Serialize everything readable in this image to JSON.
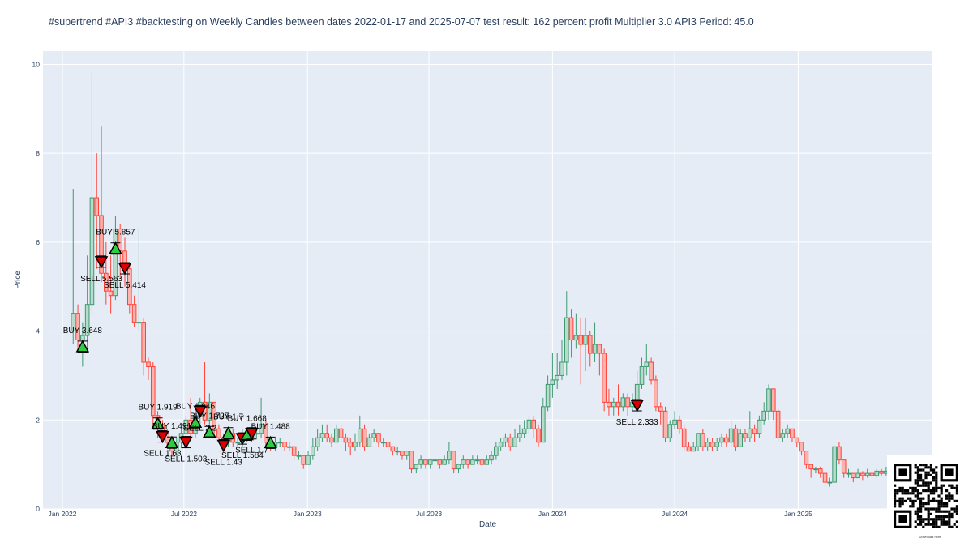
{
  "title": "#supertrend #API3 #backtesting on Weekly Candles between dates 2022-01-17 and 2025-07-07 test result: 162 percent profit Multiplier 3.0  API3 Period: 45.0",
  "qr_caption": "Download here",
  "colors": {
    "plot_bg": "#e5ecf6",
    "grid": "#ffffff",
    "up": "#3d9970",
    "down": "#ff4136",
    "buy_marker": "#2ecc40",
    "sell_marker": "#dd0000"
  },
  "chart_data": {
    "type": "candlestick",
    "xlabel": "Date",
    "ylabel": "Price",
    "ylim": [
      0,
      10.3
    ],
    "xlim": [
      "2021-12-03",
      "2025-07-20"
    ],
    "grid": true,
    "x_ticks": [
      {
        "date": "2022-01-01",
        "label": "Jan 2022"
      },
      {
        "date": "2022-07-01",
        "label": "Jul 2022"
      },
      {
        "date": "2023-01-01",
        "label": "Jan 2023"
      },
      {
        "date": "2023-07-01",
        "label": "Jul 2023"
      },
      {
        "date": "2024-01-01",
        "label": "Jan 2024"
      },
      {
        "date": "2024-07-01",
        "label": "Jul 2024"
      },
      {
        "date": "2025-01-01",
        "label": "Jan 2025"
      }
    ],
    "y_ticks": [
      0,
      2,
      4,
      6,
      8,
      10
    ],
    "candles": [
      [
        "2022-01-17",
        4.0,
        4.4,
        7.2,
        3.7
      ],
      [
        "2022-01-24",
        4.4,
        3.8,
        4.6,
        3.5
      ],
      [
        "2022-01-31",
        3.8,
        3.9,
        4.2,
        3.2
      ],
      [
        "2022-02-07",
        3.9,
        4.6,
        5.7,
        3.6
      ],
      [
        "2022-02-14",
        4.6,
        7.0,
        9.8,
        4.4
      ],
      [
        "2022-02-21",
        7.0,
        6.6,
        8.0,
        5.4
      ],
      [
        "2022-02-28",
        6.6,
        5.3,
        8.6,
        5.1
      ],
      [
        "2022-03-07",
        5.3,
        4.9,
        6.0,
        4.6
      ],
      [
        "2022-03-14",
        4.9,
        4.8,
        5.7,
        4.4
      ],
      [
        "2022-03-21",
        4.8,
        6.3,
        6.6,
        4.7
      ],
      [
        "2022-03-28",
        6.3,
        5.8,
        6.4,
        5.2
      ],
      [
        "2022-04-04",
        5.8,
        5.4,
        6.1,
        5.0
      ],
      [
        "2022-04-11",
        5.4,
        4.6,
        5.5,
        4.4
      ],
      [
        "2022-04-18",
        4.6,
        4.2,
        4.8,
        4.1
      ],
      [
        "2022-04-25",
        4.2,
        4.2,
        6.3,
        4.0
      ],
      [
        "2022-05-02",
        4.2,
        3.3,
        4.3,
        3.0
      ],
      [
        "2022-05-09",
        3.3,
        3.2,
        3.4,
        2.9
      ],
      [
        "2022-05-16",
        3.2,
        2.1,
        3.3,
        1.9
      ],
      [
        "2022-05-23",
        2.1,
        1.9,
        2.2,
        1.6
      ],
      [
        "2022-05-30",
        1.9,
        1.7,
        2.0,
        1.6
      ],
      [
        "2022-06-06",
        1.7,
        1.5,
        1.8,
        1.4
      ],
      [
        "2022-06-13",
        1.5,
        1.3,
        1.6,
        1.2
      ],
      [
        "2022-06-20",
        1.3,
        1.5,
        1.6,
        1.2
      ],
      [
        "2022-06-27",
        1.5,
        1.7,
        1.8,
        1.4
      ],
      [
        "2022-07-04",
        1.7,
        2.0,
        2.1,
        1.6
      ],
      [
        "2022-07-11",
        2.0,
        1.7,
        2.5,
        1.6
      ],
      [
        "2022-07-18",
        1.7,
        2.1,
        2.3,
        1.6
      ],
      [
        "2022-07-25",
        2.1,
        2.4,
        2.5,
        1.9
      ],
      [
        "2022-08-01",
        2.4,
        2.0,
        3.3,
        1.9
      ],
      [
        "2022-08-08",
        2.0,
        2.4,
        2.6,
        1.9
      ],
      [
        "2022-08-15",
        2.4,
        1.8,
        2.4,
        1.7
      ],
      [
        "2022-08-22",
        1.8,
        1.6,
        1.9,
        1.5
      ],
      [
        "2022-08-29",
        1.6,
        1.5,
        1.7,
        1.4
      ],
      [
        "2022-09-05",
        1.5,
        1.7,
        1.8,
        1.4
      ],
      [
        "2022-09-12",
        1.7,
        1.5,
        1.8,
        1.4
      ],
      [
        "2022-09-19",
        1.5,
        1.5,
        1.6,
        1.4
      ],
      [
        "2022-09-26",
        1.5,
        1.7,
        1.8,
        1.4
      ],
      [
        "2022-10-03",
        1.7,
        1.6,
        1.8,
        1.5
      ],
      [
        "2022-10-10",
        1.6,
        1.7,
        1.7,
        1.5
      ],
      [
        "2022-10-17",
        1.7,
        1.7,
        1.8,
        1.6
      ],
      [
        "2022-10-24",
        1.7,
        1.9,
        2.5,
        1.6
      ],
      [
        "2022-10-31",
        1.9,
        1.5,
        2.0,
        1.4
      ],
      [
        "2022-11-07",
        1.5,
        1.4,
        1.6,
        1.3
      ],
      [
        "2022-11-14",
        1.4,
        1.5,
        1.6,
        1.3
      ],
      [
        "2022-11-21",
        1.5,
        1.5,
        1.6,
        1.4
      ],
      [
        "2022-11-28",
        1.5,
        1.4,
        1.5,
        1.3
      ],
      [
        "2022-12-05",
        1.4,
        1.4,
        1.5,
        1.3
      ],
      [
        "2022-12-12",
        1.4,
        1.2,
        1.4,
        1.1
      ],
      [
        "2022-12-19",
        1.2,
        1.2,
        1.3,
        1.1
      ],
      [
        "2022-12-26",
        1.2,
        1.0,
        1.2,
        0.9
      ],
      [
        "2023-01-02",
        1.0,
        1.2,
        1.3,
        1.0
      ],
      [
        "2023-01-09",
        1.2,
        1.4,
        1.6,
        1.1
      ],
      [
        "2023-01-16",
        1.4,
        1.6,
        1.8,
        1.3
      ],
      [
        "2023-01-23",
        1.6,
        1.7,
        1.9,
        1.5
      ],
      [
        "2023-01-30",
        1.7,
        1.6,
        1.9,
        1.5
      ],
      [
        "2023-02-06",
        1.6,
        1.5,
        1.7,
        1.4
      ],
      [
        "2023-02-13",
        1.5,
        1.8,
        1.9,
        1.5
      ],
      [
        "2023-02-20",
        1.8,
        1.6,
        1.9,
        1.5
      ],
      [
        "2023-02-27",
        1.6,
        1.5,
        1.7,
        1.3
      ],
      [
        "2023-03-06",
        1.5,
        1.4,
        1.6,
        1.2
      ],
      [
        "2023-03-13",
        1.4,
        1.5,
        1.7,
        1.3
      ],
      [
        "2023-03-20",
        1.5,
        1.8,
        2.1,
        1.4
      ],
      [
        "2023-03-27",
        1.8,
        1.4,
        1.9,
        1.3
      ],
      [
        "2023-04-03",
        1.4,
        1.6,
        1.7,
        1.4
      ],
      [
        "2023-04-10",
        1.6,
        1.7,
        1.8,
        1.5
      ],
      [
        "2023-04-17",
        1.7,
        1.5,
        1.7,
        1.4
      ],
      [
        "2023-04-24",
        1.5,
        1.5,
        1.6,
        1.4
      ],
      [
        "2023-05-01",
        1.5,
        1.4,
        1.5,
        1.3
      ],
      [
        "2023-05-08",
        1.4,
        1.3,
        1.4,
        1.2
      ],
      [
        "2023-05-15",
        1.3,
        1.3,
        1.4,
        1.2
      ],
      [
        "2023-05-22",
        1.3,
        1.2,
        1.3,
        1.1
      ],
      [
        "2023-05-29",
        1.2,
        1.3,
        1.3,
        1.1
      ],
      [
        "2023-06-05",
        1.3,
        0.9,
        1.3,
        0.8
      ],
      [
        "2023-06-12",
        0.9,
        1.0,
        1.0,
        0.8
      ],
      [
        "2023-06-19",
        1.0,
        1.1,
        1.2,
        0.9
      ],
      [
        "2023-06-26",
        1.1,
        1.0,
        1.1,
        0.9
      ],
      [
        "2023-07-03",
        1.0,
        1.1,
        1.1,
        0.9
      ],
      [
        "2023-07-10",
        1.1,
        1.1,
        1.2,
        1.0
      ],
      [
        "2023-07-17",
        1.1,
        1.0,
        1.1,
        0.9
      ],
      [
        "2023-07-24",
        1.0,
        1.1,
        1.2,
        1.0
      ],
      [
        "2023-07-31",
        1.1,
        1.3,
        1.5,
        1.0
      ],
      [
        "2023-08-07",
        1.3,
        0.9,
        1.3,
        0.8
      ],
      [
        "2023-08-14",
        0.9,
        1.0,
        1.0,
        0.8
      ],
      [
        "2023-08-21",
        1.0,
        1.1,
        1.2,
        0.9
      ],
      [
        "2023-08-28",
        1.1,
        1.0,
        1.1,
        0.9
      ],
      [
        "2023-09-04",
        1.0,
        1.1,
        1.2,
        1.0
      ],
      [
        "2023-09-11",
        1.1,
        1.1,
        1.2,
        1.0
      ],
      [
        "2023-09-18",
        1.1,
        1.0,
        1.1,
        0.9
      ],
      [
        "2023-09-25",
        1.0,
        1.1,
        1.2,
        1.0
      ],
      [
        "2023-10-02",
        1.1,
        1.2,
        1.3,
        1.0
      ],
      [
        "2023-10-09",
        1.2,
        1.4,
        1.5,
        1.1
      ],
      [
        "2023-10-16",
        1.4,
        1.5,
        1.6,
        1.3
      ],
      [
        "2023-10-23",
        1.5,
        1.6,
        1.7,
        1.4
      ],
      [
        "2023-10-30",
        1.6,
        1.4,
        1.7,
        1.3
      ],
      [
        "2023-11-06",
        1.4,
        1.6,
        1.8,
        1.4
      ],
      [
        "2023-11-13",
        1.6,
        1.7,
        1.9,
        1.5
      ],
      [
        "2023-11-20",
        1.7,
        1.8,
        2.0,
        1.6
      ],
      [
        "2023-11-27",
        1.8,
        2.0,
        2.1,
        1.7
      ],
      [
        "2023-12-04",
        2.0,
        1.8,
        2.1,
        1.6
      ],
      [
        "2023-12-11",
        1.8,
        1.5,
        1.9,
        1.4
      ],
      [
        "2023-12-18",
        1.5,
        2.3,
        2.5,
        1.5
      ],
      [
        "2023-12-25",
        2.3,
        2.8,
        3.0,
        2.2
      ],
      [
        "2024-01-01",
        2.8,
        2.9,
        3.5,
        2.5
      ],
      [
        "2024-01-08",
        2.9,
        3.0,
        3.5,
        2.7
      ],
      [
        "2024-01-15",
        3.0,
        3.3,
        3.8,
        2.9
      ],
      [
        "2024-01-22",
        3.3,
        4.3,
        4.9,
        3.0
      ],
      [
        "2024-01-29",
        4.3,
        3.8,
        4.5,
        3.4
      ],
      [
        "2024-02-05",
        3.8,
        3.9,
        4.4,
        3.6
      ],
      [
        "2024-02-12",
        3.9,
        3.7,
        4.3,
        2.8
      ],
      [
        "2024-02-19",
        3.7,
        3.9,
        4.3,
        3.1
      ],
      [
        "2024-02-26",
        3.9,
        3.5,
        4.0,
        3.2
      ],
      [
        "2024-03-04",
        3.5,
        3.7,
        4.2,
        3.3
      ],
      [
        "2024-03-11",
        3.7,
        3.5,
        3.7,
        3.0
      ],
      [
        "2024-03-18",
        3.5,
        2.4,
        3.6,
        2.2
      ],
      [
        "2024-03-25",
        2.4,
        2.3,
        2.7,
        2.1
      ],
      [
        "2024-04-01",
        2.3,
        2.4,
        2.5,
        2.1
      ],
      [
        "2024-04-08",
        2.4,
        2.3,
        2.8,
        2.1
      ],
      [
        "2024-04-15",
        2.3,
        2.5,
        2.6,
        2.2
      ],
      [
        "2024-04-22",
        2.5,
        2.3,
        2.6,
        2.1
      ],
      [
        "2024-04-29",
        2.3,
        2.4,
        2.6,
        2.2
      ],
      [
        "2024-05-06",
        2.4,
        2.8,
        3.1,
        2.3
      ],
      [
        "2024-05-13",
        2.8,
        3.2,
        3.4,
        2.7
      ],
      [
        "2024-05-20",
        3.2,
        3.3,
        3.7,
        3.0
      ],
      [
        "2024-05-27",
        3.3,
        2.9,
        3.4,
        2.8
      ],
      [
        "2024-06-03",
        2.9,
        2.3,
        3.0,
        2.2
      ],
      [
        "2024-06-10",
        2.3,
        2.2,
        2.4,
        1.9
      ],
      [
        "2024-06-17",
        2.2,
        1.6,
        2.3,
        1.5
      ],
      [
        "2024-06-24",
        1.6,
        1.9,
        2.0,
        1.5
      ],
      [
        "2024-07-01",
        1.9,
        2.0,
        2.2,
        1.8
      ],
      [
        "2024-07-08",
        2.0,
        1.8,
        2.1,
        1.7
      ],
      [
        "2024-07-15",
        1.8,
        1.4,
        1.9,
        1.3
      ],
      [
        "2024-07-22",
        1.4,
        1.3,
        1.5,
        1.3
      ],
      [
        "2024-07-29",
        1.3,
        1.4,
        1.5,
        1.3
      ],
      [
        "2024-08-05",
        1.4,
        1.7,
        1.7,
        1.3
      ],
      [
        "2024-08-12",
        1.7,
        1.4,
        1.8,
        1.3
      ],
      [
        "2024-08-19",
        1.4,
        1.5,
        1.6,
        1.3
      ],
      [
        "2024-08-26",
        1.5,
        1.4,
        1.6,
        1.3
      ],
      [
        "2024-09-02",
        1.4,
        1.5,
        1.6,
        1.3
      ],
      [
        "2024-09-09",
        1.5,
        1.6,
        1.7,
        1.4
      ],
      [
        "2024-09-16",
        1.6,
        1.5,
        1.7,
        1.4
      ],
      [
        "2024-09-23",
        1.5,
        1.8,
        2.0,
        1.4
      ],
      [
        "2024-09-30",
        1.8,
        1.4,
        1.9,
        1.3
      ],
      [
        "2024-10-07",
        1.4,
        1.7,
        1.8,
        1.4
      ],
      [
        "2024-10-14",
        1.7,
        1.6,
        1.8,
        1.5
      ],
      [
        "2024-10-21",
        1.6,
        1.8,
        2.2,
        1.5
      ],
      [
        "2024-10-28",
        1.8,
        1.7,
        1.9,
        1.5
      ],
      [
        "2024-11-04",
        1.7,
        2.0,
        2.1,
        1.6
      ],
      [
        "2024-11-11",
        2.0,
        2.2,
        2.4,
        1.9
      ],
      [
        "2024-11-18",
        2.2,
        2.7,
        2.8,
        2.0
      ],
      [
        "2024-11-25",
        2.7,
        2.2,
        2.7,
        2.0
      ],
      [
        "2024-12-02",
        2.2,
        1.6,
        2.3,
        1.5
      ],
      [
        "2024-12-09",
        1.6,
        1.7,
        1.8,
        1.5
      ],
      [
        "2024-12-16",
        1.7,
        1.8,
        1.9,
        1.6
      ],
      [
        "2024-12-23",
        1.8,
        1.6,
        1.8,
        1.5
      ],
      [
        "2024-12-30",
        1.6,
        1.5,
        1.6,
        1.4
      ],
      [
        "2025-01-06",
        1.5,
        1.3,
        1.5,
        1.2
      ],
      [
        "2025-01-13",
        1.3,
        1.0,
        1.3,
        0.9
      ],
      [
        "2025-01-20",
        1.0,
        0.9,
        1.0,
        0.7
      ],
      [
        "2025-01-27",
        0.9,
        0.9,
        0.95,
        0.8
      ],
      [
        "2025-02-03",
        0.9,
        0.8,
        0.95,
        0.7
      ],
      [
        "2025-02-10",
        0.8,
        0.6,
        0.8,
        0.5
      ],
      [
        "2025-02-17",
        0.6,
        0.6,
        0.7,
        0.5
      ],
      [
        "2025-02-24",
        0.6,
        1.4,
        1.4,
        0.6
      ],
      [
        "2025-03-03",
        1.4,
        1.1,
        1.5,
        1.0
      ],
      [
        "2025-03-10",
        1.1,
        0.8,
        1.1,
        0.7
      ],
      [
        "2025-03-17",
        0.8,
        0.8,
        0.9,
        0.7
      ],
      [
        "2025-03-24",
        0.8,
        0.7,
        0.8,
        0.6
      ],
      [
        "2025-03-31",
        0.7,
        0.8,
        0.9,
        0.7
      ],
      [
        "2025-04-07",
        0.8,
        0.75,
        0.85,
        0.65
      ],
      [
        "2025-04-14",
        0.75,
        0.8,
        0.9,
        0.7
      ],
      [
        "2025-04-21",
        0.8,
        0.75,
        0.85,
        0.7
      ],
      [
        "2025-04-28",
        0.75,
        0.85,
        0.9,
        0.7
      ],
      [
        "2025-05-05",
        0.85,
        0.8,
        0.9,
        0.75
      ],
      [
        "2025-05-12",
        0.8,
        0.85,
        0.95,
        0.75
      ],
      [
        "2025-05-19",
        0.85,
        0.8,
        0.9,
        0.7
      ],
      [
        "2025-05-26",
        0.8,
        0.75,
        0.85,
        0.7
      ],
      [
        "2025-06-02",
        0.75,
        0.8,
        0.9,
        0.7
      ],
      [
        "2025-06-09",
        0.8,
        0.7,
        0.85,
        0.65
      ],
      [
        "2025-06-16",
        0.7,
        0.75,
        0.8,
        0.65
      ],
      [
        "2025-06-23",
        0.75,
        0.7,
        0.8,
        0.65
      ],
      [
        "2025-06-30",
        0.7,
        0.75,
        0.8,
        0.65
      ],
      [
        "2025-07-07",
        0.75,
        0.72,
        0.8,
        0.68
      ]
    ],
    "signals": [
      {
        "type": "BUY",
        "date": "2022-01-31",
        "price": 3.648,
        "label": "BUY 3.648"
      },
      {
        "type": "SELL",
        "date": "2022-02-28",
        "price": 5.563,
        "label": "SELL 5.563"
      },
      {
        "type": "BUY",
        "date": "2022-03-21",
        "price": 5.857,
        "label": "BUY 5.857"
      },
      {
        "type": "SELL",
        "date": "2022-04-04",
        "price": 5.414,
        "label": "SELL 5.414"
      },
      {
        "type": "BUY",
        "date": "2022-05-23",
        "price": 1.919,
        "label": "BUY 1.919"
      },
      {
        "type": "SELL",
        "date": "2022-05-30",
        "price": 1.63,
        "label": "SELL 1.63"
      },
      {
        "type": "BUY",
        "date": "2022-06-13",
        "price": 1.491,
        "label": "BUY 1.491"
      },
      {
        "type": "SELL",
        "date": "2022-07-04",
        "price": 1.503,
        "label": "SELL 1.503"
      },
      {
        "type": "BUY",
        "date": "2022-07-18",
        "price": 1.946,
        "label": "BUY 1.946"
      },
      {
        "type": "SELL",
        "date": "2022-07-25",
        "price": 2.2,
        "label": "SELL 2.2"
      },
      {
        "type": "BUY",
        "date": "2022-08-08",
        "price": 1.727,
        "label": "BUY 1.727"
      },
      {
        "type": "SELL",
        "date": "2022-08-29",
        "price": 1.43,
        "label": "SELL 1.43"
      },
      {
        "type": "BUY",
        "date": "2022-09-05",
        "price": 1.7,
        "label": "BUY 1.7"
      },
      {
        "type": "SELL",
        "date": "2022-09-26",
        "price": 1.584,
        "label": "SELL 1.584"
      },
      {
        "type": "BUY",
        "date": "2022-10-03",
        "price": 1.668,
        "label": "BUY 1.668"
      },
      {
        "type": "SELL",
        "date": "2022-10-10",
        "price": 1.7,
        "label": "SELL 1.7"
      },
      {
        "type": "BUY",
        "date": "2022-11-07",
        "price": 1.488,
        "label": "BUY 1.488"
      },
      {
        "type": "SELL",
        "date": "2024-05-06",
        "price": 2.333,
        "label": "SELL 2.333"
      }
    ]
  }
}
